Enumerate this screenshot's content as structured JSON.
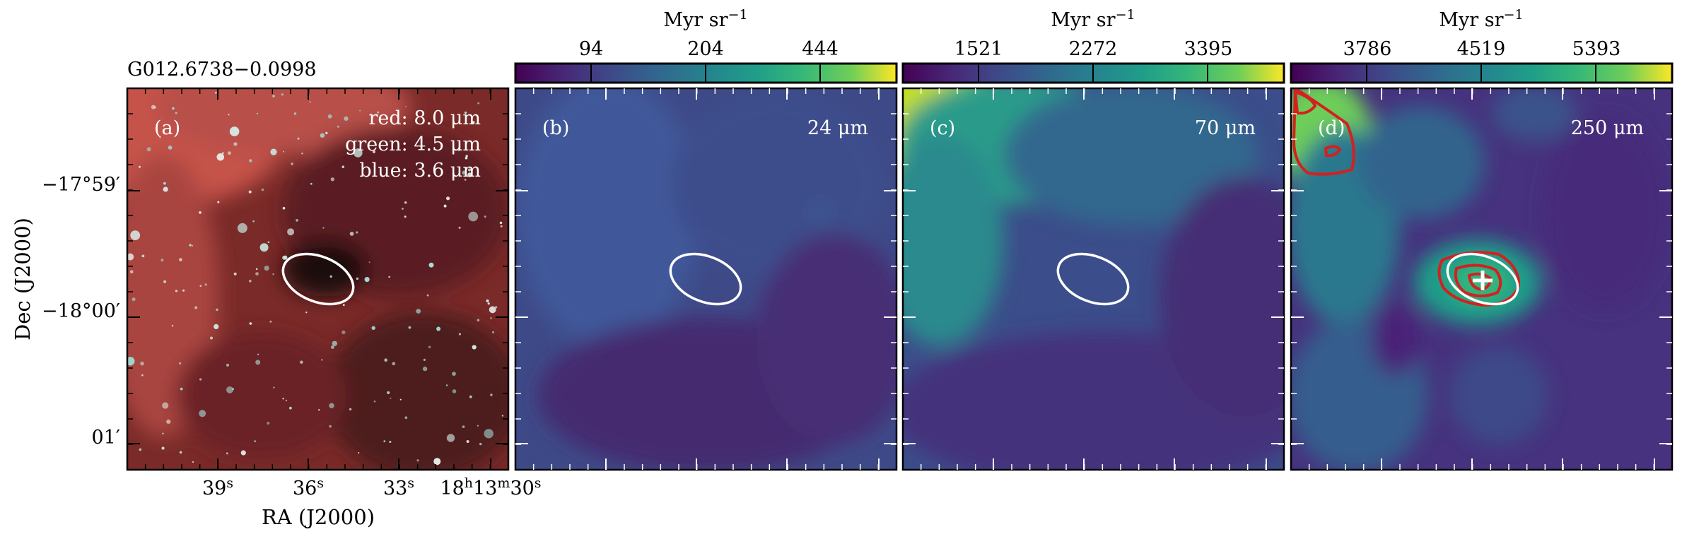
{
  "source_name": "G012.6738−0.0998",
  "axes": {
    "xlabel": "RA (J2000)",
    "ylabel": "Dec (J2000)",
    "ra_ticks": [
      "39",
      "36",
      "33",
      "18h13m30s"
    ],
    "ra_ticks_display": [
      {
        "main": "39",
        "sup": "s"
      },
      {
        "main": "36",
        "sup": "s"
      },
      {
        "main": "33",
        "sup": "s"
      },
      {
        "main": "18",
        "sup": "h",
        "main2": "13",
        "sup2": "m",
        "main3": "30",
        "sup3": "s"
      }
    ],
    "dec_ticks": [
      "−17°59′",
      "−18°00′",
      "01′"
    ]
  },
  "colorbar_unit": "Myr sr",
  "colorbar_unit_exp": "−1",
  "panels": [
    {
      "id": "a",
      "tag": "(a)",
      "legend": [
        "red: 8.0 μm",
        "green: 4.5 μm",
        "blue: 3.6 μm"
      ],
      "colormap": "rgb"
    },
    {
      "id": "b",
      "tag": "(b)",
      "band": "24 μm",
      "colorbar_ticks": [
        "94",
        "204",
        "444"
      ],
      "colormap": "viridis"
    },
    {
      "id": "c",
      "tag": "(c)",
      "band": "70 μm",
      "colorbar_ticks": [
        "1521",
        "2272",
        "3395"
      ],
      "colormap": "viridis"
    },
    {
      "id": "d",
      "tag": "(d)",
      "band": "250 μm",
      "colorbar_ticks": [
        "3786",
        "4519",
        "5393"
      ],
      "colormap": "viridis",
      "contours": "red",
      "marker": "cross"
    }
  ],
  "colors": {
    "ellipse": "#ffffff",
    "contour": "#d42020",
    "viridis_low": "#440154",
    "viridis_mid": "#21918c",
    "viridis_high": "#fde725"
  }
}
